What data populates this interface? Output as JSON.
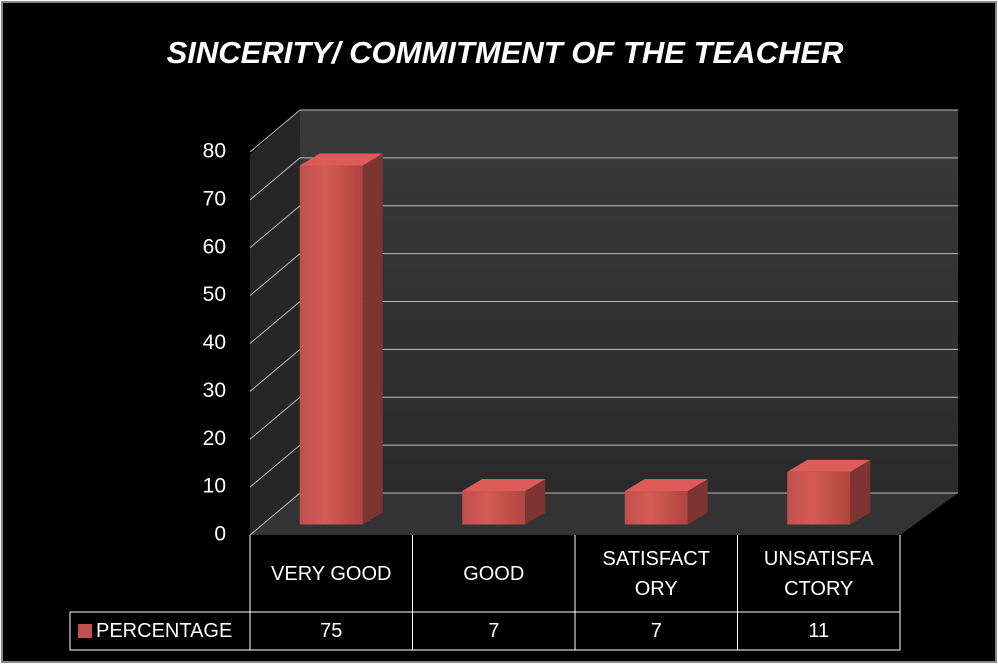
{
  "chart_data": {
    "type": "bar",
    "title": "SINCERITY/ COMMITMENT OF THE TEACHER",
    "categories": [
      "VERY GOOD",
      "GOOD",
      "SATISFACTORY",
      "UNSATISFACTORY"
    ],
    "series": [
      {
        "name": "PERCENTAGE",
        "color": "#c0504d",
        "values": [
          75,
          7,
          7,
          11
        ]
      }
    ],
    "ylim": [
      0,
      80
    ],
    "yticks": [
      0,
      10,
      20,
      30,
      40,
      50,
      60,
      70,
      80
    ],
    "grid": true
  }
}
